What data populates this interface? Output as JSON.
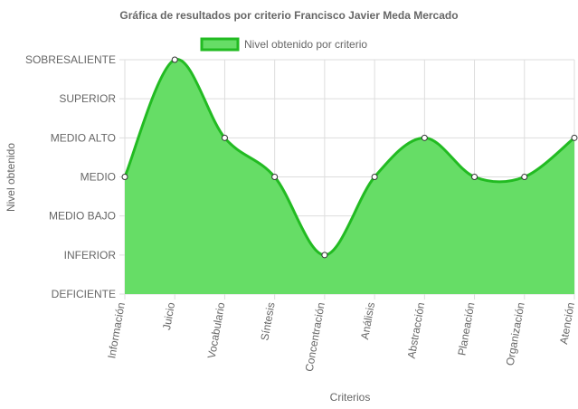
{
  "chart_data": {
    "type": "area",
    "title": "Gráfica de resultados por criterio Francisco Javier Meda Mercado",
    "xlabel": "Criterios",
    "ylabel": "Nivel obtenido",
    "legend_position": "top",
    "grid": true,
    "y_levels": [
      "DEFICIENTE",
      "INFERIOR",
      "MEDIO BAJO",
      "MEDIO",
      "MEDIO ALTO",
      "SUPERIOR",
      "SOBRESALIENTE"
    ],
    "ylim": [
      0,
      6
    ],
    "categories": [
      "Información",
      "Juicio",
      "Vocabulario",
      "Síntesis",
      "Concentración",
      "Análisis",
      "Abstracción",
      "Planeación",
      "Organización",
      "Atención"
    ],
    "series": [
      {
        "name": "Nivel obtenido por criterio",
        "values": [
          3,
          6,
          4,
          3,
          1,
          3,
          4,
          3,
          3,
          4
        ],
        "fill_color": "#66dd66",
        "line_color": "#22bb22"
      }
    ]
  }
}
